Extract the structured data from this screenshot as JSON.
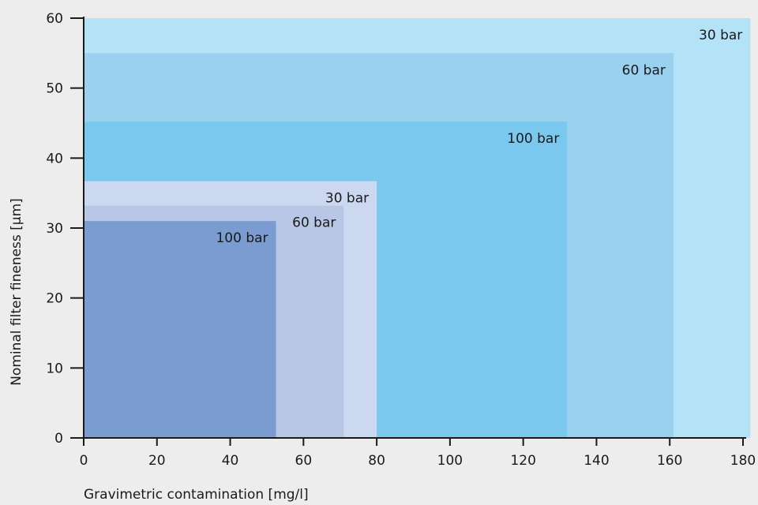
{
  "chart_data": {
    "type": "area",
    "xlabel": "Gravimetric contamination [mg/l]",
    "ylabel": "Nominal filter fineness [µm]",
    "xlim": [
      0,
      180
    ],
    "ylim": [
      0,
      60
    ],
    "xticks": [
      0,
      20,
      40,
      60,
      80,
      100,
      120,
      140,
      160,
      180
    ],
    "yticks": [
      0,
      10,
      20,
      30,
      40,
      50,
      60
    ],
    "grid": false,
    "regions": [
      {
        "label": "30 bar",
        "group": "blue",
        "x_max": 182,
        "y_max": 60,
        "color": "#b4e2f6"
      },
      {
        "label": "60 bar",
        "group": "blue",
        "x_max": 161,
        "y_max": 55,
        "color": "#9ad1ef"
      },
      {
        "label": "100 bar",
        "group": "blue",
        "x_max": 132,
        "y_max": 45.2,
        "color": "#7bc8ee"
      },
      {
        "label": "30 bar",
        "group": "purple",
        "x_max": 80,
        "y_max": 36.7,
        "color": "#ccd8ef"
      },
      {
        "label": "60 bar",
        "group": "purple",
        "x_max": 71,
        "y_max": 33.2,
        "color": "#b8c7e6"
      },
      {
        "label": "100 bar",
        "group": "purple",
        "x_max": 52.5,
        "y_max": 31,
        "color": "#7b9cd1"
      }
    ]
  }
}
